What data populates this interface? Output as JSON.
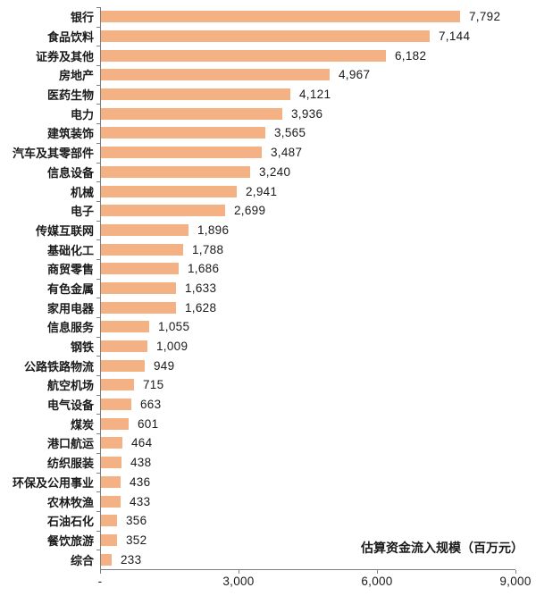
{
  "chart_data": {
    "type": "bar",
    "orientation": "horizontal",
    "title": "",
    "xlabel": "估算资金流入规模（百万元）",
    "categories": [
      "银行",
      "食品饮料",
      "证券及其他",
      "房地产",
      "医药生物",
      "电力",
      "建筑装饰",
      "汽车及其零部件",
      "信息设备",
      "机械",
      "电子",
      "传媒互联网",
      "基础化工",
      "商贸零售",
      "有色金属",
      "家用电器",
      "信息服务",
      "钢铁",
      "公路铁路物流",
      "航空机场",
      "电气设备",
      "煤炭",
      "港口航运",
      "纺织服装",
      "环保及公用事业",
      "农林牧渔",
      "石油石化",
      "餐饮旅游",
      "综合"
    ],
    "values": [
      7792,
      7144,
      6182,
      4967,
      4121,
      3936,
      3565,
      3487,
      3240,
      2941,
      2699,
      1896,
      1788,
      1686,
      1633,
      1628,
      1055,
      1009,
      949,
      715,
      663,
      601,
      464,
      438,
      436,
      433,
      356,
      352,
      233
    ],
    "value_labels": [
      "7,792",
      "7,144",
      "6,182",
      "4,967",
      "4,121",
      "3,936",
      "3,565",
      "3,487",
      "3,240",
      "2,941",
      "2,699",
      "1,896",
      "1,788",
      "1,686",
      "1,633",
      "1,628",
      "1,055",
      "1,009",
      "949",
      "715",
      "663",
      "601",
      "464",
      "438",
      "436",
      "433",
      "356",
      "352",
      "233"
    ],
    "xlim": [
      0,
      9000
    ],
    "x_ticks": [
      {
        "value": 0,
        "label": "-"
      },
      {
        "value": 3000,
        "label": "3,000"
      },
      {
        "value": 6000,
        "label": "6,000"
      },
      {
        "value": 9000,
        "label": "9,000"
      }
    ],
    "bar_color": "#F4B183",
    "axis_color": "#808080",
    "grid": false,
    "legend": null
  }
}
